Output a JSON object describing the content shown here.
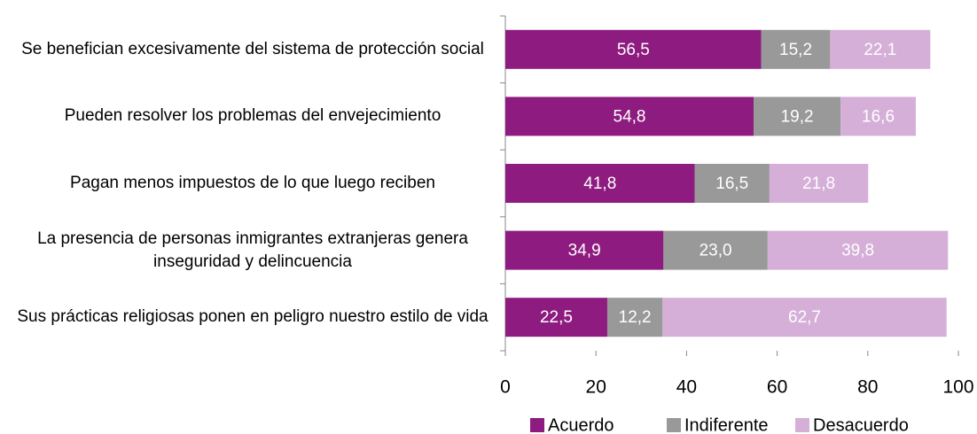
{
  "chart_data": {
    "type": "stacked_bar_horizontal",
    "categories": [
      "Se benefician excesivamente del sistema de protección social",
      "Pueden resolver los problemas del envejecimiento",
      "Pagan menos impuestos de lo que luego reciben",
      "La presencia de personas inmigrantes extranjeras genera inseguridad y delincuencia",
      "Sus prácticas religiosas ponen en peligro nuestro estilo de vida"
    ],
    "series": [
      {
        "name": "Acuerdo",
        "color": "#8e1b7f",
        "values": [
          56.5,
          54.8,
          41.8,
          34.9,
          22.5
        ],
        "value_labels": [
          "56,5",
          "54,8",
          "41,8",
          "34,9",
          "22,5"
        ]
      },
      {
        "name": "Indiferente",
        "color": "#999999",
        "values": [
          15.2,
          19.2,
          16.5,
          23.0,
          12.2
        ],
        "value_labels": [
          "15,2",
          "19,2",
          "16,5",
          "23,0",
          "12,2"
        ]
      },
      {
        "name": "Desacuerdo",
        "color": "#d5afd8",
        "values": [
          22.1,
          16.6,
          21.8,
          39.8,
          62.7
        ],
        "value_labels": [
          "22,1",
          "16,6",
          "21,8",
          "39,8",
          "62,7"
        ]
      }
    ],
    "xlim": [
      0,
      100
    ],
    "xticks": [
      0,
      20,
      40,
      60,
      80,
      100
    ],
    "legend": "bottom"
  }
}
